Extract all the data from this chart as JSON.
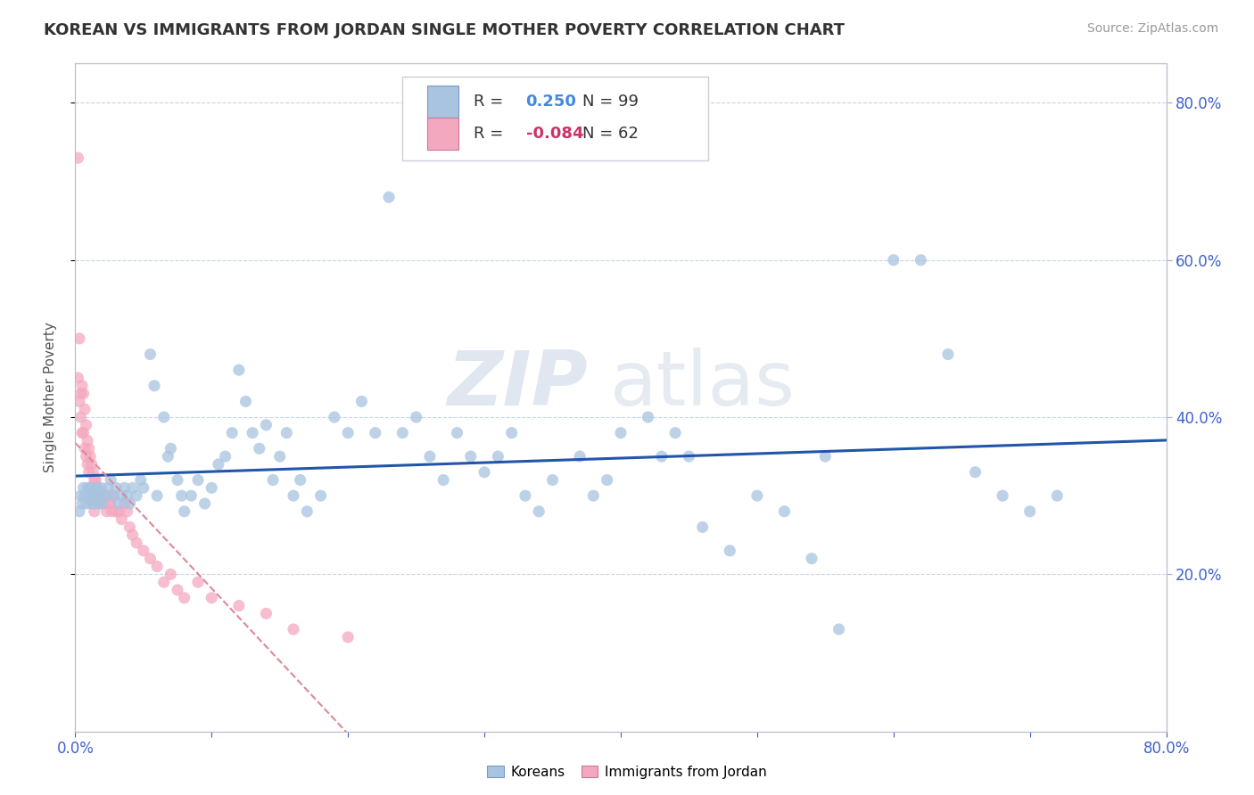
{
  "title": "KOREAN VS IMMIGRANTS FROM JORDAN SINGLE MOTHER POVERTY CORRELATION CHART",
  "source": "Source: ZipAtlas.com",
  "ylabel": "Single Mother Poverty",
  "xlim": [
    0.0,
    0.8
  ],
  "ylim": [
    0.0,
    0.85
  ],
  "xticks": [
    0.0,
    0.1,
    0.2,
    0.3,
    0.4,
    0.5,
    0.6,
    0.7,
    0.8
  ],
  "xticklabels": [
    "0.0%",
    "",
    "",
    "",
    "",
    "",
    "",
    "",
    "80.0%"
  ],
  "ytick_positions": [
    0.2,
    0.4,
    0.6,
    0.8
  ],
  "ytick_labels": [
    "20.0%",
    "40.0%",
    "60.0%",
    "80.0%"
  ],
  "R_korean": 0.25,
  "N_korean": 99,
  "R_jordan": -0.084,
  "N_jordan": 62,
  "korean_color": "#a8c4e0",
  "jordan_color": "#f4a8c0",
  "korean_line_color": "#2255aa",
  "jordan_line_color": "#dd8899",
  "watermark": "ZIPatlas",
  "legend_korean": "Koreans",
  "legend_jordan": "Immigrants from Jordan",
  "background_color": "#ffffff",
  "grid_color": "#c8d4e8",
  "korean_scatter_x": [
    0.003,
    0.004,
    0.005,
    0.006,
    0.007,
    0.008,
    0.009,
    0.01,
    0.011,
    0.012,
    0.013,
    0.014,
    0.015,
    0.016,
    0.017,
    0.018,
    0.019,
    0.02,
    0.022,
    0.024,
    0.026,
    0.028,
    0.03,
    0.032,
    0.034,
    0.036,
    0.038,
    0.04,
    0.042,
    0.045,
    0.048,
    0.05,
    0.055,
    0.058,
    0.06,
    0.065,
    0.068,
    0.07,
    0.075,
    0.078,
    0.08,
    0.085,
    0.09,
    0.095,
    0.1,
    0.105,
    0.11,
    0.115,
    0.12,
    0.125,
    0.13,
    0.135,
    0.14,
    0.145,
    0.15,
    0.155,
    0.16,
    0.165,
    0.17,
    0.18,
    0.19,
    0.2,
    0.21,
    0.22,
    0.23,
    0.24,
    0.25,
    0.26,
    0.27,
    0.28,
    0.29,
    0.3,
    0.31,
    0.32,
    0.33,
    0.34,
    0.35,
    0.37,
    0.38,
    0.39,
    0.4,
    0.42,
    0.43,
    0.44,
    0.45,
    0.46,
    0.48,
    0.5,
    0.52,
    0.54,
    0.55,
    0.56,
    0.6,
    0.62,
    0.64,
    0.66,
    0.68,
    0.7,
    0.72
  ],
  "korean_scatter_y": [
    0.28,
    0.3,
    0.29,
    0.31,
    0.3,
    0.29,
    0.31,
    0.3,
    0.29,
    0.31,
    0.3,
    0.29,
    0.3,
    0.31,
    0.29,
    0.3,
    0.31,
    0.29,
    0.3,
    0.31,
    0.32,
    0.3,
    0.31,
    0.29,
    0.3,
    0.31,
    0.3,
    0.29,
    0.31,
    0.3,
    0.32,
    0.31,
    0.48,
    0.44,
    0.3,
    0.4,
    0.35,
    0.36,
    0.32,
    0.3,
    0.28,
    0.3,
    0.32,
    0.29,
    0.31,
    0.34,
    0.35,
    0.38,
    0.46,
    0.42,
    0.38,
    0.36,
    0.39,
    0.32,
    0.35,
    0.38,
    0.3,
    0.32,
    0.28,
    0.3,
    0.4,
    0.38,
    0.42,
    0.38,
    0.68,
    0.38,
    0.4,
    0.35,
    0.32,
    0.38,
    0.35,
    0.33,
    0.35,
    0.38,
    0.3,
    0.28,
    0.32,
    0.35,
    0.3,
    0.32,
    0.38,
    0.4,
    0.35,
    0.38,
    0.35,
    0.26,
    0.23,
    0.3,
    0.28,
    0.22,
    0.35,
    0.13,
    0.6,
    0.6,
    0.48,
    0.33,
    0.3,
    0.28,
    0.3
  ],
  "jordan_scatter_x": [
    0.002,
    0.002,
    0.003,
    0.003,
    0.004,
    0.004,
    0.005,
    0.005,
    0.006,
    0.006,
    0.007,
    0.007,
    0.008,
    0.008,
    0.009,
    0.009,
    0.01,
    0.01,
    0.011,
    0.011,
    0.012,
    0.012,
    0.013,
    0.013,
    0.014,
    0.014,
    0.015,
    0.015,
    0.016,
    0.017,
    0.018,
    0.019,
    0.02,
    0.021,
    0.022,
    0.023,
    0.024,
    0.025,
    0.026,
    0.027,
    0.028,
    0.03,
    0.032,
    0.034,
    0.036,
    0.038,
    0.04,
    0.042,
    0.045,
    0.05,
    0.055,
    0.06,
    0.065,
    0.07,
    0.075,
    0.08,
    0.09,
    0.1,
    0.12,
    0.14,
    0.16,
    0.2
  ],
  "jordan_scatter_y": [
    0.73,
    0.45,
    0.5,
    0.42,
    0.43,
    0.4,
    0.44,
    0.38,
    0.43,
    0.38,
    0.41,
    0.36,
    0.39,
    0.35,
    0.37,
    0.34,
    0.36,
    0.33,
    0.35,
    0.31,
    0.34,
    0.3,
    0.33,
    0.29,
    0.32,
    0.28,
    0.32,
    0.3,
    0.31,
    0.3,
    0.3,
    0.29,
    0.3,
    0.29,
    0.3,
    0.28,
    0.3,
    0.29,
    0.29,
    0.28,
    0.3,
    0.28,
    0.28,
    0.27,
    0.29,
    0.28,
    0.26,
    0.25,
    0.24,
    0.23,
    0.22,
    0.21,
    0.19,
    0.2,
    0.18,
    0.17,
    0.19,
    0.17,
    0.16,
    0.15,
    0.13,
    0.12
  ]
}
